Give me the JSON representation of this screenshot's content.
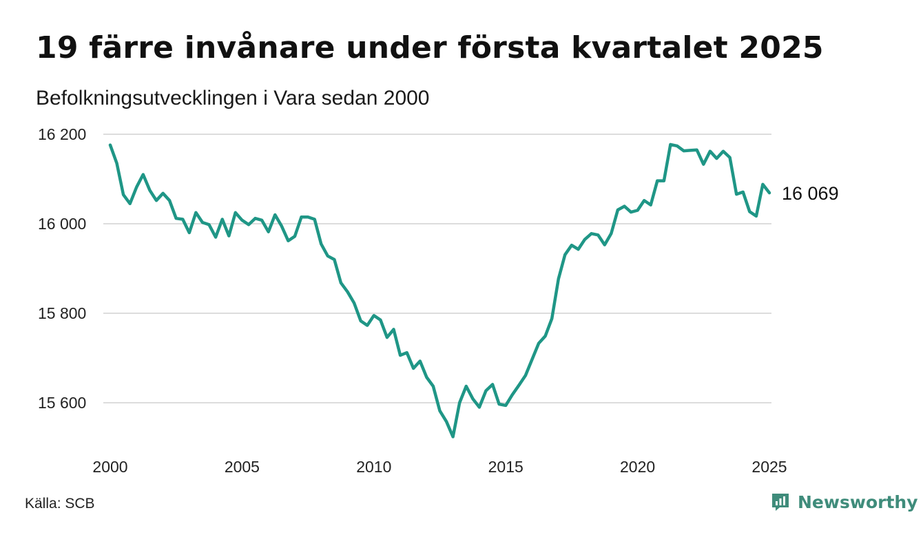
{
  "header": {
    "title": "19 färre invånare under första kvartalet 2025",
    "subtitle": "Befolkningsutvecklingen i Vara sedan 2000"
  },
  "footer": {
    "source": "Källa: SCB",
    "brand": "Newsworthy",
    "brand_icon": "newsworthy-logo-icon",
    "brand_color": "#3f8c7b"
  },
  "chart_data": {
    "type": "line",
    "title": "19 färre invånare under första kvartalet 2025",
    "subtitle": "Befolkningsutvecklingen i Vara sedan 2000",
    "xlabel": "",
    "ylabel": "",
    "xlim": [
      2000,
      2025.25
    ],
    "ylim": [
      15500,
      16200
    ],
    "x_ticks": [
      2000,
      2005,
      2010,
      2015,
      2020,
      2025
    ],
    "x_tick_labels": [
      "2000",
      "2005",
      "2010",
      "2015",
      "2020",
      "2025"
    ],
    "y_ticks": [
      15600,
      15800,
      16000,
      16200
    ],
    "y_tick_labels": [
      "15 600",
      "15 800",
      "16 000",
      "16 200"
    ],
    "grid": true,
    "line_color": "#1f9686",
    "end_label": "16 069",
    "series": [
      {
        "x_start": 2000.0,
        "x_step": 0.25,
        "values": [
          16176,
          16135,
          16065,
          16045,
          16082,
          16110,
          16075,
          16052,
          16068,
          16052,
          16012,
          16010,
          15980,
          16025,
          16003,
          15998,
          15970,
          16010,
          15973,
          16025,
          16008,
          15998,
          16012,
          16008,
          15982,
          16020,
          15995,
          15962,
          15972,
          16015,
          16015,
          16010,
          15955,
          15928,
          15920,
          15868,
          15848,
          15823,
          15783,
          15773,
          15795,
          15785,
          15746,
          15764,
          15706,
          15712,
          15677,
          15693,
          15657,
          15637,
          15582,
          15558,
          15524,
          15600,
          15637,
          15609,
          15590,
          15627,
          15641,
          15597,
          15594,
          15618,
          15639,
          15661,
          15697,
          15733,
          15749,
          15788,
          15877,
          15931,
          15952,
          15943,
          15965,
          15978,
          15975,
          15953,
          15978,
          16031,
          16039,
          16026,
          16030,
          16052,
          16042,
          16096,
          16096,
          16177,
          16174,
          16163,
          16164,
          16165,
          16133,
          16162,
          16146,
          16162,
          16148,
          16066,
          16071,
          16027,
          16017,
          16088,
          16069
        ]
      }
    ]
  }
}
